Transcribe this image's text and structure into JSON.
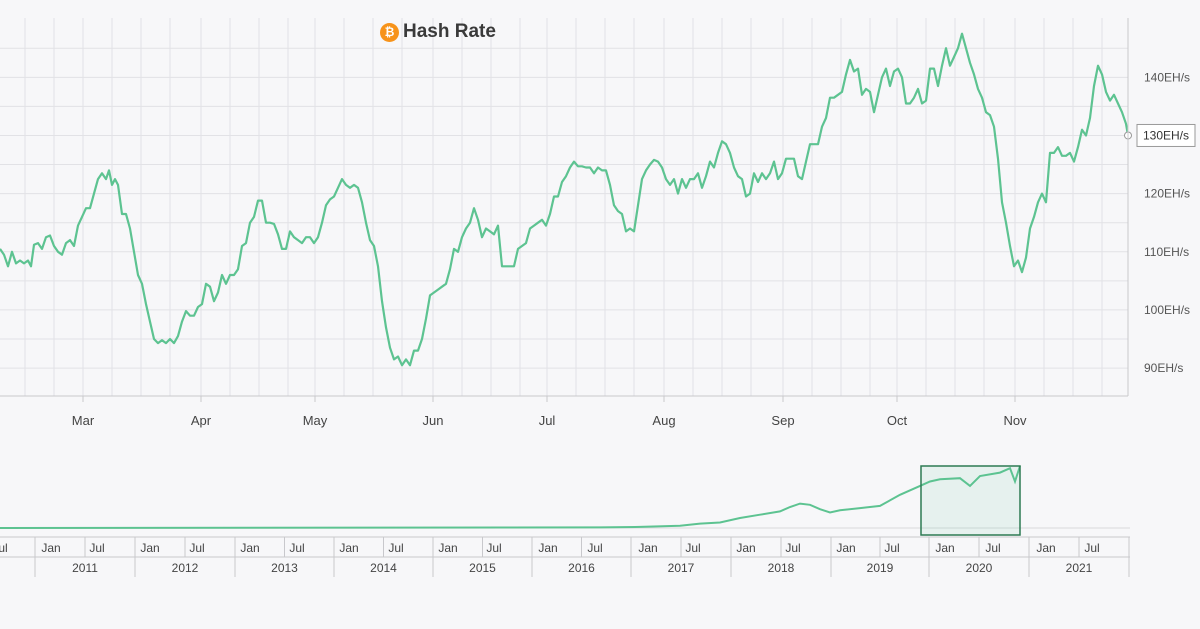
{
  "chart_data": {
    "type": "line",
    "title": "Hash Rate",
    "title_icon": "bitcoin-icon",
    "series_color": "#5dc391",
    "accent_color": "#f7931a",
    "grid": true,
    "y_unit": "EH/s",
    "y_ticks": [
      90,
      100,
      110,
      120,
      130,
      140
    ],
    "y_tick_labels": [
      "90EH/s",
      "100EH/s",
      "110EH/s",
      "120EH/s",
      "130EH/s",
      "140EH/s"
    ],
    "ylim": [
      85.2,
      150.2
    ],
    "x_tick_labels": [
      "Mar",
      "Apr",
      "May",
      "Jun",
      "Jul",
      "Aug",
      "Sep",
      "Oct",
      "Nov"
    ],
    "current_value_label": "130EH/s",
    "series": [
      {
        "values": [
          [
            0,
            110.5
          ],
          [
            4,
            109.5
          ],
          [
            8,
            107.5
          ],
          [
            12,
            110
          ],
          [
            16,
            108
          ],
          [
            20,
            108.5
          ],
          [
            24,
            108
          ],
          [
            28,
            108.5
          ],
          [
            31,
            107.5
          ],
          [
            34,
            111.2
          ],
          [
            38,
            111.5
          ],
          [
            42,
            110.5
          ],
          [
            46,
            112.5
          ],
          [
            50,
            112.8
          ],
          [
            54,
            111
          ],
          [
            58,
            110
          ],
          [
            62,
            109.5
          ],
          [
            66,
            111.5
          ],
          [
            70,
            112
          ],
          [
            74,
            111
          ],
          [
            78,
            114.5
          ],
          [
            82,
            116
          ],
          [
            86,
            117.5
          ],
          [
            90,
            117.5
          ],
          [
            94,
            120
          ],
          [
            98,
            122.5
          ],
          [
            102,
            123.5
          ],
          [
            106,
            122.5
          ],
          [
            109,
            124
          ],
          [
            112,
            121.5
          ],
          [
            115,
            122.5
          ],
          [
            118,
            121.5
          ],
          [
            122,
            116.5
          ],
          [
            126,
            116.5
          ],
          [
            130,
            114
          ],
          [
            134,
            110
          ],
          [
            138,
            106
          ],
          [
            142,
            104.5
          ],
          [
            146,
            101
          ],
          [
            150,
            98
          ],
          [
            154,
            95
          ],
          [
            158,
            94.3
          ],
          [
            162,
            94.8
          ],
          [
            166,
            94.3
          ],
          [
            170,
            95
          ],
          [
            174,
            94.3
          ],
          [
            178,
            95.5
          ],
          [
            182,
            98
          ],
          [
            186,
            99.8
          ],
          [
            190,
            99
          ],
          [
            194,
            99
          ],
          [
            198,
            100.5
          ],
          [
            202,
            101
          ],
          [
            206,
            104.5
          ],
          [
            210,
            104
          ],
          [
            214,
            101.5
          ],
          [
            218,
            103
          ],
          [
            222,
            106
          ],
          [
            226,
            104.5
          ],
          [
            230,
            106
          ],
          [
            234,
            106
          ],
          [
            238,
            107
          ],
          [
            242,
            111
          ],
          [
            246,
            111.5
          ],
          [
            250,
            115
          ],
          [
            254,
            116
          ],
          [
            258,
            118.8
          ],
          [
            262,
            118.8
          ],
          [
            266,
            115
          ],
          [
            270,
            115
          ],
          [
            274,
            114.8
          ],
          [
            278,
            113
          ],
          [
            282,
            110.5
          ],
          [
            286,
            110.5
          ],
          [
            290,
            113.5
          ],
          [
            294,
            112.5
          ],
          [
            298,
            112
          ],
          [
            302,
            111.5
          ],
          [
            306,
            112.5
          ],
          [
            310,
            112.5
          ],
          [
            314,
            111.5
          ],
          [
            318,
            112.5
          ],
          [
            322,
            115
          ],
          [
            326,
            118
          ],
          [
            330,
            119
          ],
          [
            334,
            119.5
          ],
          [
            338,
            121
          ],
          [
            342,
            122.5
          ],
          [
            346,
            121.5
          ],
          [
            350,
            121
          ],
          [
            354,
            121.5
          ],
          [
            358,
            121
          ],
          [
            362,
            118.5
          ],
          [
            366,
            115
          ],
          [
            370,
            112
          ],
          [
            374,
            111
          ],
          [
            378,
            107.5
          ],
          [
            382,
            101.5
          ],
          [
            386,
            97
          ],
          [
            390,
            93.5
          ],
          [
            394,
            91.5
          ],
          [
            398,
            92
          ],
          [
            402,
            90.5
          ],
          [
            406,
            91.5
          ],
          [
            410,
            90.5
          ],
          [
            414,
            93
          ],
          [
            418,
            93
          ],
          [
            422,
            95
          ],
          [
            426,
            98.5
          ],
          [
            430,
            102.5
          ],
          [
            434,
            103
          ],
          [
            438,
            103.5
          ],
          [
            442,
            104
          ],
          [
            446,
            104.5
          ],
          [
            450,
            107
          ],
          [
            454,
            110.5
          ],
          [
            458,
            110
          ],
          [
            462,
            112.5
          ],
          [
            466,
            114
          ],
          [
            470,
            115
          ],
          [
            474,
            117.5
          ],
          [
            478,
            115.5
          ],
          [
            482,
            112.5
          ],
          [
            486,
            114
          ],
          [
            490,
            113.5
          ],
          [
            494,
            113
          ],
          [
            498,
            114.5
          ],
          [
            502,
            107.5
          ],
          [
            506,
            107.5
          ],
          [
            510,
            107.5
          ],
          [
            514,
            107.5
          ],
          [
            518,
            110.5
          ],
          [
            522,
            111
          ],
          [
            526,
            111.5
          ],
          [
            530,
            114
          ],
          [
            534,
            114.5
          ],
          [
            538,
            115
          ],
          [
            542,
            115.5
          ],
          [
            546,
            114.5
          ],
          [
            550,
            116.5
          ],
          [
            554,
            119.5
          ],
          [
            558,
            119.5
          ],
          [
            562,
            122
          ],
          [
            566,
            123
          ],
          [
            570,
            124.5
          ],
          [
            574,
            125.5
          ],
          [
            578,
            124.7
          ],
          [
            582,
            124.7
          ],
          [
            586,
            124.5
          ],
          [
            590,
            124.5
          ],
          [
            594,
            123.5
          ],
          [
            598,
            124.5
          ],
          [
            602,
            124
          ],
          [
            606,
            124
          ],
          [
            610,
            121.5
          ],
          [
            614,
            118
          ],
          [
            618,
            117
          ],
          [
            622,
            116.5
          ],
          [
            626,
            113.5
          ],
          [
            630,
            114
          ],
          [
            634,
            113.5
          ],
          [
            638,
            118
          ],
          [
            642,
            122.5
          ],
          [
            646,
            124
          ],
          [
            650,
            125
          ],
          [
            654,
            125.8
          ],
          [
            658,
            125.5
          ],
          [
            662,
            124.5
          ],
          [
            666,
            122.5
          ],
          [
            670,
            121.5
          ],
          [
            674,
            122.5
          ],
          [
            678,
            120
          ],
          [
            682,
            122.5
          ],
          [
            686,
            121
          ],
          [
            690,
            122.5
          ],
          [
            694,
            122.5
          ],
          [
            698,
            123.5
          ],
          [
            702,
            121
          ],
          [
            706,
            123
          ],
          [
            710,
            125.5
          ],
          [
            714,
            124.5
          ],
          [
            718,
            127
          ],
          [
            722,
            129
          ],
          [
            726,
            128.5
          ],
          [
            730,
            127
          ],
          [
            734,
            124.5
          ],
          [
            738,
            123
          ],
          [
            742,
            122.5
          ],
          [
            746,
            119.5
          ],
          [
            750,
            120
          ],
          [
            754,
            123.5
          ],
          [
            758,
            122
          ],
          [
            762,
            123.5
          ],
          [
            766,
            122.5
          ],
          [
            770,
            123.5
          ],
          [
            774,
            125.5
          ],
          [
            778,
            122.5
          ],
          [
            782,
            123.5
          ],
          [
            786,
            126
          ],
          [
            790,
            126
          ],
          [
            794,
            126
          ],
          [
            798,
            123
          ],
          [
            802,
            122.5
          ],
          [
            806,
            125.5
          ],
          [
            810,
            128.5
          ],
          [
            814,
            128.5
          ],
          [
            818,
            128.5
          ],
          [
            822,
            131.5
          ],
          [
            826,
            133
          ],
          [
            830,
            136.5
          ],
          [
            834,
            136.5
          ],
          [
            838,
            137
          ],
          [
            842,
            137.5
          ],
          [
            846,
            140.5
          ],
          [
            850,
            143
          ],
          [
            854,
            141
          ],
          [
            858,
            141.5
          ],
          [
            862,
            137
          ],
          [
            866,
            138
          ],
          [
            870,
            137.5
          ],
          [
            874,
            134
          ],
          [
            878,
            137
          ],
          [
            882,
            140
          ],
          [
            886,
            141.5
          ],
          [
            890,
            138.5
          ],
          [
            894,
            141
          ],
          [
            898,
            141.5
          ],
          [
            902,
            140
          ],
          [
            906,
            135.5
          ],
          [
            910,
            135.5
          ],
          [
            914,
            136.5
          ],
          [
            918,
            138
          ],
          [
            922,
            135.5
          ],
          [
            926,
            136
          ],
          [
            930,
            141.5
          ],
          [
            934,
            141.5
          ],
          [
            938,
            138.5
          ],
          [
            942,
            142
          ],
          [
            946,
            145
          ],
          [
            950,
            142
          ],
          [
            954,
            143.5
          ],
          [
            958,
            145
          ],
          [
            962,
            147.5
          ],
          [
            966,
            145
          ],
          [
            970,
            142.5
          ],
          [
            974,
            140.5
          ],
          [
            978,
            138
          ],
          [
            982,
            136.5
          ],
          [
            986,
            134
          ],
          [
            990,
            133.5
          ],
          [
            994,
            131.5
          ],
          [
            998,
            126
          ],
          [
            1002,
            118.5
          ],
          [
            1006,
            115
          ],
          [
            1010,
            111
          ],
          [
            1014,
            107.5
          ],
          [
            1018,
            108.5
          ],
          [
            1022,
            106.5
          ],
          [
            1026,
            109
          ],
          [
            1030,
            114
          ],
          [
            1034,
            116
          ],
          [
            1038,
            118.5
          ],
          [
            1042,
            120
          ],
          [
            1046,
            118.5
          ],
          [
            1050,
            127
          ],
          [
            1054,
            127
          ],
          [
            1058,
            128
          ],
          [
            1062,
            126.5
          ],
          [
            1066,
            126.5
          ],
          [
            1070,
            127
          ],
          [
            1074,
            125.5
          ],
          [
            1078,
            128
          ],
          [
            1082,
            131
          ],
          [
            1086,
            130
          ],
          [
            1090,
            133
          ],
          [
            1094,
            138.5
          ],
          [
            1098,
            142
          ],
          [
            1102,
            140.5
          ],
          [
            1106,
            137.5
          ],
          [
            1110,
            136
          ],
          [
            1114,
            137
          ],
          [
            1118,
            135.5
          ],
          [
            1122,
            134
          ],
          [
            1126,
            132
          ],
          [
            1128,
            130
          ]
        ]
      }
    ],
    "navigator": {
      "year_labels": [
        "2011",
        "2012",
        "2013",
        "2014",
        "2015",
        "2016",
        "2017",
        "2018",
        "2019",
        "2020",
        "2021"
      ],
      "half_labels": [
        "Jul",
        "Jan",
        "Jul",
        "Jan",
        "Jul",
        "Jan",
        "Jul",
        "Jan",
        "Jul",
        "Jan",
        "Jul",
        "Jan",
        "Jul",
        "Jan",
        "Jul",
        "Jan",
        "Jul",
        "Jan",
        "Jul",
        "Jan",
        "Jul",
        "Jan",
        "Jul"
      ],
      "overview": [
        [
          0,
          0
        ],
        [
          600,
          0.5
        ],
        [
          640,
          1
        ],
        [
          680,
          2
        ],
        [
          700,
          4
        ],
        [
          720,
          5
        ],
        [
          740,
          9
        ],
        [
          760,
          12
        ],
        [
          780,
          15
        ],
        [
          790,
          19
        ],
        [
          800,
          22
        ],
        [
          810,
          21
        ],
        [
          820,
          17
        ],
        [
          830,
          14
        ],
        [
          840,
          16
        ],
        [
          860,
          18
        ],
        [
          880,
          20
        ],
        [
          900,
          30
        ],
        [
          920,
          38
        ],
        [
          930,
          42
        ],
        [
          940,
          44
        ],
        [
          960,
          45
        ],
        [
          970,
          38
        ],
        [
          980,
          47
        ],
        [
          1000,
          50
        ],
        [
          1010,
          54
        ],
        [
          1015,
          42
        ],
        [
          1020,
          56
        ]
      ]
    }
  }
}
